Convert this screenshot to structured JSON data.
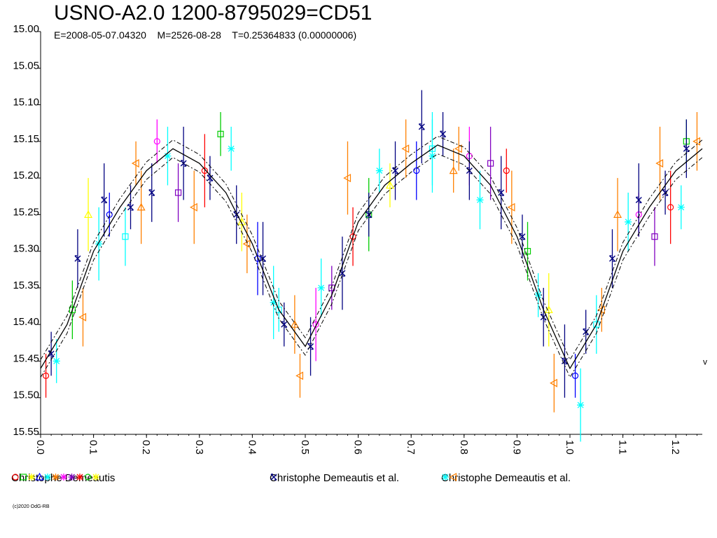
{
  "header": {
    "title": "USNO-A2.0 1200-8795029=CD51",
    "elements": "E=2008-05-07.04320    M=2526-08-28    T=0.25364833 (0.00000006)"
  },
  "legend": [
    {
      "label": "Christophe Demeautis",
      "symbols": [
        "circle",
        "square",
        "diamond",
        "triangle",
        "star",
        "diamond",
        "pentagon",
        "triangle-down",
        "star",
        "circle",
        "star"
      ]
    },
    {
      "label": "Christophe Demeautis et al.",
      "symbols": [
        "cross"
      ]
    },
    {
      "label": "Christophe Demeautis et al.",
      "symbols": [
        "star",
        "triangle-left"
      ]
    }
  ],
  "copyright": "(c)2020 OdG-RB",
  "colors": {
    "red": "#ff0000",
    "green": "#00cc00",
    "yellow": "#ffff00",
    "blue": "#0000ff",
    "cyan": "#00ffff",
    "orange": "#ff8000",
    "magenta": "#ff00ff",
    "purple": "#8000c0",
    "navy": "#000080",
    "olive": "#808000"
  },
  "chart_data": {
    "type": "scatter",
    "title": "USNO-A2.0 1200-8795029=CD51",
    "xlabel": "",
    "ylabel": "",
    "xlim": [
      0.0,
      1.25
    ],
    "ylim": [
      15.55,
      15.0
    ],
    "x_ticks": [
      "0.0",
      "0.1",
      "0.2",
      "0.3",
      "0.4",
      "0.5",
      "0.6",
      "0.7",
      "0.8",
      "0.9",
      "1.0",
      "1.1",
      "1.2"
    ],
    "y_ticks": [
      "15.00",
      "15.05",
      "15.10",
      "15.15",
      "15.20",
      "15.25",
      "15.30",
      "15.35",
      "15.40",
      "15.45",
      "15.50",
      "15.55"
    ],
    "grid": false,
    "model_curve": {
      "x": [
        0.0,
        0.05,
        0.1,
        0.15,
        0.2,
        0.25,
        0.3,
        0.35,
        0.4,
        0.45,
        0.5,
        0.55,
        0.6,
        0.65,
        0.7,
        0.75,
        0.8,
        0.85,
        0.9,
        0.95,
        1.0,
        1.05,
        1.1,
        1.15,
        1.2,
        1.25
      ],
      "y": [
        15.46,
        15.4,
        15.3,
        15.24,
        15.19,
        15.16,
        15.18,
        15.22,
        15.29,
        15.38,
        15.43,
        15.36,
        15.26,
        15.21,
        15.18,
        15.155,
        15.17,
        15.21,
        15.28,
        15.38,
        15.46,
        15.4,
        15.3,
        15.24,
        15.19,
        15.16
      ]
    },
    "series": [
      {
        "name": "Christophe Demeautis",
        "x": [
          0.01,
          0.06,
          0.09,
          0.13,
          0.16,
          0.19,
          0.22,
          0.26,
          0.31,
          0.34,
          0.38,
          0.41,
          0.45,
          0.48,
          0.52,
          0.55,
          0.59,
          0.62,
          0.66,
          0.71,
          0.74,
          0.78,
          0.81,
          0.85,
          0.88,
          0.92,
          0.96,
          1.01,
          1.05,
          1.09,
          1.13,
          1.16,
          1.19,
          1.22
        ],
        "y": [
          15.47,
          15.38,
          15.25,
          15.25,
          15.28,
          15.24,
          15.15,
          15.22,
          15.19,
          15.14,
          15.26,
          15.31,
          15.38,
          15.4,
          15.4,
          15.35,
          15.28,
          15.25,
          15.21,
          15.19,
          15.16,
          15.19,
          15.17,
          15.18,
          15.19,
          15.3,
          15.38,
          15.47,
          15.4,
          15.25,
          15.25,
          15.28,
          15.24,
          15.15
        ]
      },
      {
        "name": "Christophe Demeautis et al.",
        "x": [
          0.02,
          0.07,
          0.12,
          0.17,
          0.21,
          0.27,
          0.32,
          0.37,
          0.42,
          0.46,
          0.51,
          0.57,
          0.62,
          0.67,
          0.72,
          0.76,
          0.81,
          0.87,
          0.91,
          0.95,
          0.99,
          1.03,
          1.08,
          1.13,
          1.18,
          1.22
        ],
        "y": [
          15.44,
          15.31,
          15.23,
          15.24,
          15.22,
          15.18,
          15.2,
          15.25,
          15.31,
          15.4,
          15.43,
          15.33,
          15.25,
          15.19,
          15.13,
          15.14,
          15.19,
          15.22,
          15.28,
          15.39,
          15.45,
          15.41,
          15.31,
          15.23,
          15.22,
          15.16
        ]
      },
      {
        "name": "Christophe Demeautis et al.",
        "x": [
          0.03,
          0.08,
          0.11,
          0.18,
          0.24,
          0.29,
          0.36,
          0.39,
          0.44,
          0.49,
          0.53,
          0.58,
          0.64,
          0.69,
          0.74,
          0.79,
          0.83,
          0.89,
          0.94,
          0.97,
          1.02,
          1.06,
          1.11,
          1.17,
          1.21,
          1.24
        ],
        "y": [
          15.45,
          15.39,
          15.29,
          15.18,
          15.17,
          15.24,
          15.16,
          15.29,
          15.37,
          15.47,
          15.35,
          15.2,
          15.19,
          15.16,
          15.17,
          15.16,
          15.23,
          15.24,
          15.36,
          15.48,
          15.51,
          15.38,
          15.26,
          15.18,
          15.24,
          15.15
        ]
      }
    ]
  }
}
